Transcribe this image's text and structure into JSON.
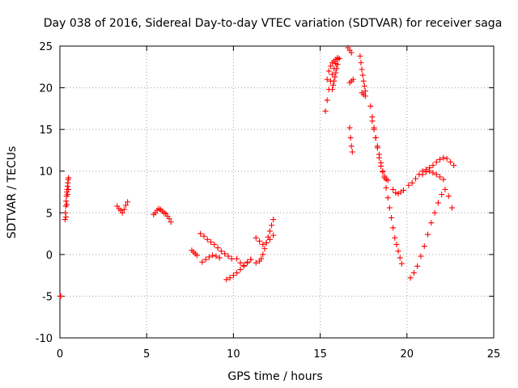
{
  "chart_data": {
    "type": "scatter",
    "title": "Day 038 of 2016, Sidereal Day-to-day VTEC variation (SDTVAR) for receiver saga",
    "xlabel": "GPS time / hours",
    "ylabel": "SDTVAR / TECUs",
    "xlim": [
      0,
      25
    ],
    "ylim": [
      -10,
      25
    ],
    "xticks": [
      0,
      5,
      10,
      15,
      20,
      25
    ],
    "yticks": [
      -10,
      -5,
      0,
      5,
      10,
      15,
      20,
      25
    ],
    "grid": true,
    "marker": "+",
    "color": "#ff0000",
    "segments": [
      {
        "x": [
          0.0,
          0.05
        ],
        "y": [
          -5.0,
          -5.0
        ]
      },
      {
        "x": [
          0.3,
          0.32,
          0.34,
          0.36,
          0.38,
          0.4,
          0.42,
          0.44,
          0.46,
          0.48,
          0.5
        ],
        "y": [
          4.2,
          5.0,
          5.8,
          6.4,
          7.0,
          7.5,
          7.8,
          8.2,
          8.6,
          9.0,
          9.2
        ]
      },
      {
        "x": [
          0.35,
          0.4,
          0.45,
          0.5
        ],
        "y": [
          4.5,
          6.0,
          7.2,
          7.8
        ]
      },
      {
        "x": [
          3.3,
          3.4,
          3.5,
          3.6,
          3.7,
          3.8,
          3.9
        ],
        "y": [
          5.8,
          5.5,
          5.3,
          5.0,
          5.4,
          5.9,
          6.3
        ]
      },
      {
        "x": [
          5.4,
          5.5,
          5.6,
          5.7,
          5.8,
          5.9,
          6.0,
          6.1,
          6.2,
          6.3,
          6.4
        ],
        "y": [
          4.8,
          5.0,
          5.3,
          5.5,
          5.4,
          5.2,
          5.0,
          4.9,
          4.6,
          4.3,
          3.9
        ]
      },
      {
        "x": [
          7.6,
          7.7,
          7.8,
          7.9
        ],
        "y": [
          0.5,
          0.3,
          0.1,
          -0.1
        ]
      },
      {
        "x": [
          8.1,
          8.3,
          8.5,
          8.7,
          8.9,
          9.1,
          9.3,
          9.5,
          9.7,
          9.9
        ],
        "y": [
          2.5,
          2.2,
          1.8,
          1.5,
          1.2,
          0.8,
          0.4,
          0.1,
          -0.2,
          -0.5
        ]
      },
      {
        "x": [
          8.2,
          8.4,
          8.6,
          8.8,
          9.0,
          9.2
        ],
        "y": [
          -0.9,
          -0.6,
          -0.3,
          -0.1,
          -0.2,
          -0.4
        ]
      },
      {
        "x": [
          9.6,
          9.8,
          10.0,
          10.2,
          10.4,
          10.6,
          10.8,
          11.0
        ],
        "y": [
          -3.0,
          -2.8,
          -2.5,
          -2.2,
          -1.8,
          -1.4,
          -1.0,
          -0.6
        ]
      },
      {
        "x": [
          10.2,
          10.4,
          10.6,
          10.8,
          11.0
        ],
        "y": [
          -0.5,
          -1.0,
          -1.3,
          -0.9,
          -0.6
        ]
      },
      {
        "x": [
          11.3,
          11.5,
          11.7,
          11.9,
          12.1,
          12.3
        ],
        "y": [
          2.0,
          1.6,
          1.2,
          1.4,
          1.8,
          2.3
        ]
      },
      {
        "x": [
          11.3,
          11.5,
          11.6,
          11.7,
          11.8,
          11.9,
          12.0,
          12.1,
          12.2,
          12.3
        ],
        "y": [
          -1.0,
          -0.8,
          -0.5,
          0.0,
          0.7,
          1.4,
          2.1,
          2.8,
          3.5,
          4.2
        ]
      },
      {
        "x": [
          15.3,
          15.4,
          15.5,
          15.6,
          15.7,
          15.8,
          15.9,
          16.0
        ],
        "y": [
          17.2,
          18.5,
          19.8,
          20.8,
          21.6,
          22.3,
          22.9,
          23.4
        ]
      },
      {
        "x": [
          15.4,
          15.5,
          15.6,
          15.7,
          15.8,
          15.9,
          16.0,
          16.1
        ],
        "y": [
          21.0,
          22.0,
          22.6,
          23.0,
          23.2,
          23.4,
          23.6,
          23.5
        ]
      },
      {
        "x": [
          15.7,
          15.75,
          15.8,
          15.85,
          15.9,
          15.95,
          16.0
        ],
        "y": [
          19.8,
          20.3,
          20.8,
          21.3,
          21.8,
          22.3,
          22.8
        ]
      },
      {
        "x": [
          16.6,
          16.7,
          16.8
        ],
        "y": [
          24.8,
          24.5,
          24.2
        ]
      },
      {
        "x": [
          16.7,
          16.8,
          16.9
        ],
        "y": [
          20.6,
          20.8,
          21.0
        ]
      },
      {
        "x": [
          16.7,
          16.75,
          16.8,
          16.85
        ],
        "y": [
          15.2,
          14.0,
          13.0,
          12.3
        ]
      },
      {
        "x": [
          17.3,
          17.35,
          17.4,
          17.45,
          17.5,
          17.55,
          17.6
        ],
        "y": [
          23.8,
          23.0,
          22.2,
          21.5,
          20.8,
          20.2,
          19.6
        ]
      },
      {
        "x": [
          17.4,
          17.5,
          17.6
        ],
        "y": [
          19.4,
          19.2,
          19.0
        ]
      },
      {
        "x": [
          17.9,
          18.0,
          18.1,
          18.2,
          18.3,
          18.4,
          18.5,
          18.6,
          18.7,
          18.8,
          18.9
        ],
        "y": [
          17.8,
          16.5,
          15.2,
          14.0,
          12.8,
          11.6,
          10.6,
          9.9,
          9.4,
          9.0,
          8.9
        ]
      },
      {
        "x": [
          18.0,
          18.1,
          18.2,
          18.3,
          18.4,
          18.5,
          18.6,
          18.7,
          18.8,
          18.9,
          19.0,
          19.1,
          19.2,
          19.3,
          19.4,
          19.5,
          19.6,
          19.7
        ],
        "y": [
          16.0,
          15.0,
          14.0,
          13.0,
          12.0,
          11.0,
          10.0,
          9.2,
          8.0,
          6.8,
          5.6,
          4.4,
          3.2,
          2.0,
          1.2,
          0.4,
          -0.4,
          -1.1
        ]
      },
      {
        "x": [
          19.2,
          19.35,
          19.5,
          19.65,
          19.8
        ],
        "y": [
          7.8,
          7.4,
          7.3,
          7.5,
          7.7
        ]
      },
      {
        "x": [
          20.1,
          20.3,
          20.5,
          20.7,
          20.9,
          21.1,
          21.3,
          21.5,
          21.7,
          21.9,
          22.1,
          22.3,
          22.5,
          22.7
        ],
        "y": [
          8.3,
          8.6,
          9.1,
          9.6,
          10.0,
          10.2,
          10.4,
          10.7,
          11.1,
          11.4,
          11.6,
          11.5,
          11.1,
          10.7
        ]
      },
      {
        "x": [
          20.2,
          20.4,
          20.6,
          20.8,
          21.0,
          21.2,
          21.4,
          21.6,
          21.8,
          22.0,
          22.2,
          22.4,
          22.6
        ],
        "y": [
          -2.8,
          -2.2,
          -1.4,
          -0.2,
          1.0,
          2.4,
          3.8,
          5.0,
          6.2,
          7.2,
          7.8,
          7.0,
          5.6
        ]
      },
      {
        "x": [
          20.9,
          21.1,
          21.3,
          21.5,
          21.7,
          21.9,
          22.1
        ],
        "y": [
          9.6,
          9.9,
          10.0,
          9.8,
          9.6,
          9.3,
          9.0
        ]
      }
    ]
  }
}
